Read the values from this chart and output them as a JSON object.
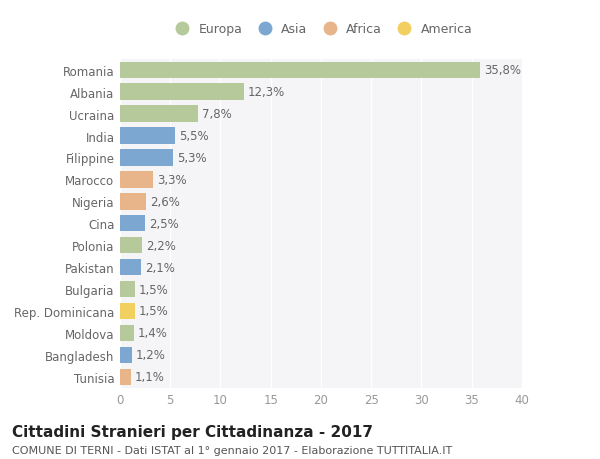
{
  "countries": [
    "Romania",
    "Albania",
    "Ucraina",
    "India",
    "Filippine",
    "Marocco",
    "Nigeria",
    "Cina",
    "Polonia",
    "Pakistan",
    "Bulgaria",
    "Rep. Dominicana",
    "Moldova",
    "Bangladesh",
    "Tunisia"
  ],
  "values": [
    35.8,
    12.3,
    7.8,
    5.5,
    5.3,
    3.3,
    2.6,
    2.5,
    2.2,
    2.1,
    1.5,
    1.5,
    1.4,
    1.2,
    1.1
  ],
  "labels": [
    "35,8%",
    "12,3%",
    "7,8%",
    "5,5%",
    "5,3%",
    "3,3%",
    "2,6%",
    "2,5%",
    "2,2%",
    "2,1%",
    "1,5%",
    "1,5%",
    "1,4%",
    "1,2%",
    "1,1%"
  ],
  "continents": [
    "Europa",
    "Europa",
    "Europa",
    "Asia",
    "Asia",
    "Africa",
    "Africa",
    "Asia",
    "Europa",
    "Asia",
    "Europa",
    "America",
    "Europa",
    "Asia",
    "Africa"
  ],
  "colors": {
    "Europa": "#b5c99a",
    "Asia": "#7ba7d0",
    "Africa": "#e8b48a",
    "America": "#f2d060"
  },
  "legend_order": [
    "Europa",
    "Asia",
    "Africa",
    "America"
  ],
  "xlim": [
    0,
    40
  ],
  "xticks": [
    0,
    5,
    10,
    15,
    20,
    25,
    30,
    35,
    40
  ],
  "title": "Cittadini Stranieri per Cittadinanza - 2017",
  "subtitle": "COMUNE DI TERNI - Dati ISTAT al 1° gennaio 2017 - Elaborazione TUTTITALIA.IT",
  "bg_color": "#ffffff",
  "plot_bg_color": "#f5f5f8",
  "grid_color": "#ffffff",
  "bar_height": 0.75,
  "label_fontsize": 8.5,
  "tick_label_fontsize": 8.5,
  "title_fontsize": 11,
  "subtitle_fontsize": 8
}
